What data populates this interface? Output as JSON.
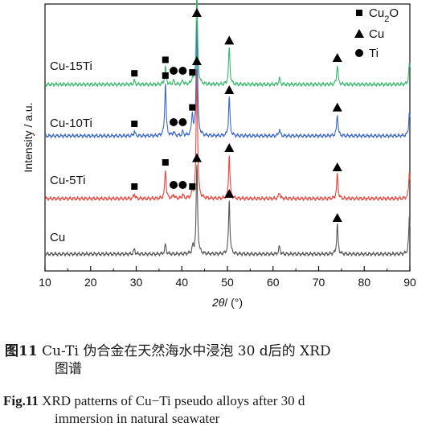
{
  "chart_data": {
    "type": "line",
    "xlabel_italic": "2θ",
    "xlabel_unit": "/ (°)",
    "ylabel": "Intensity / a.u.",
    "xlim": [
      10,
      90
    ],
    "xticks": [
      10,
      20,
      30,
      40,
      50,
      60,
      70,
      80,
      90
    ],
    "yticks_shown": false,
    "grid": false,
    "legend_position": "top-right",
    "legend": [
      {
        "marker": "square",
        "label": "Cu",
        "subscript": "2",
        "suffix": "O"
      },
      {
        "marker": "triangle",
        "label": "Cu"
      },
      {
        "marker": "circle",
        "label": "Ti"
      }
    ],
    "series": [
      {
        "name": "Cu",
        "color": "#555555",
        "peaks": [
          {
            "x": 29.6,
            "h": 0.05
          },
          {
            "x": 36.4,
            "h": 0.1
          },
          {
            "x": 42.4,
            "h": 0.07
          },
          {
            "x": 43.3,
            "h": 0.92
          },
          {
            "x": 50.4,
            "h": 0.55
          },
          {
            "x": 61.4,
            "h": 0.08
          },
          {
            "x": 74.1,
            "h": 0.3
          },
          {
            "x": 89.9,
            "h": 0.38
          }
        ],
        "markers": [
          {
            "x": 43.3,
            "type": "triangle"
          },
          {
            "x": 50.4,
            "type": "triangle"
          },
          {
            "x": 74.1,
            "type": "triangle"
          }
        ]
      },
      {
        "name": "Cu-5Ti",
        "color": "#e8453c",
        "peaks": [
          {
            "x": 29.6,
            "h": 0.05
          },
          {
            "x": 36.4,
            "h": 0.3
          },
          {
            "x": 38.2,
            "h": 0.04
          },
          {
            "x": 40.2,
            "h": 0.04
          },
          {
            "x": 42.3,
            "h": 0.05
          },
          {
            "x": 43.3,
            "h": 1.35
          },
          {
            "x": 50.4,
            "h": 0.45
          },
          {
            "x": 61.4,
            "h": 0.07
          },
          {
            "x": 74.1,
            "h": 0.25
          },
          {
            "x": 89.9,
            "h": 0.28
          }
        ],
        "markers": [
          {
            "x": 29.6,
            "type": "square"
          },
          {
            "x": 36.4,
            "type": "square"
          },
          {
            "x": 38.2,
            "type": "circle"
          },
          {
            "x": 40.2,
            "type": "circle"
          },
          {
            "x": 42.3,
            "type": "square"
          },
          {
            "x": 43.3,
            "type": "triangle"
          },
          {
            "x": 50.4,
            "type": "triangle"
          },
          {
            "x": 74.1,
            "type": "triangle"
          }
        ]
      },
      {
        "name": "Cu-10Ti",
        "color": "#3b67c4",
        "peaks": [
          {
            "x": 29.6,
            "h": 0.05
          },
          {
            "x": 36.4,
            "h": 0.55
          },
          {
            "x": 38.2,
            "h": 0.04
          },
          {
            "x": 40.2,
            "h": 0.04
          },
          {
            "x": 42.3,
            "h": 0.22
          },
          {
            "x": 43.3,
            "h": 1.2
          },
          {
            "x": 50.4,
            "h": 0.4
          },
          {
            "x": 61.4,
            "h": 0.07
          },
          {
            "x": 74.1,
            "h": 0.22
          },
          {
            "x": 89.9,
            "h": 0.25
          }
        ],
        "markers": [
          {
            "x": 29.6,
            "type": "square"
          },
          {
            "x": 36.4,
            "type": "square"
          },
          {
            "x": 38.2,
            "type": "circle"
          },
          {
            "x": 40.2,
            "type": "circle"
          },
          {
            "x": 42.3,
            "type": "square"
          },
          {
            "x": 43.3,
            "type": "triangle"
          },
          {
            "x": 50.4,
            "type": "triangle"
          },
          {
            "x": 74.1,
            "type": "triangle"
          }
        ]
      },
      {
        "name": "Cu-15Ti",
        "color": "#35b86a",
        "peaks": [
          {
            "x": 29.6,
            "h": 0.04
          },
          {
            "x": 36.4,
            "h": 0.18
          },
          {
            "x": 38.2,
            "h": 0.04
          },
          {
            "x": 40.2,
            "h": 0.04
          },
          {
            "x": 42.3,
            "h": 0.05
          },
          {
            "x": 43.3,
            "h": 0.98
          },
          {
            "x": 50.4,
            "h": 0.38
          },
          {
            "x": 61.4,
            "h": 0.06
          },
          {
            "x": 74.1,
            "h": 0.2
          },
          {
            "x": 89.9,
            "h": 0.22
          }
        ],
        "markers": [
          {
            "x": 29.6,
            "type": "square"
          },
          {
            "x": 36.4,
            "type": "square"
          },
          {
            "x": 38.2,
            "type": "circle"
          },
          {
            "x": 40.2,
            "type": "circle"
          },
          {
            "x": 42.3,
            "type": "square"
          },
          {
            "x": 43.3,
            "type": "triangle"
          },
          {
            "x": 50.4,
            "type": "triangle"
          },
          {
            "x": 74.1,
            "type": "triangle"
          }
        ]
      }
    ]
  },
  "caption": {
    "cn_lead": "图11",
    "cn_text": " Cu-Ti 伪合金在天然海水中浸泡 30 d后的 XRD",
    "cn_text2": "图谱",
    "en_lead": "Fig.11",
    "en_text": " XRD patterns of Cu−Ti pseudo alloys after 30 d",
    "en_text2": "immersion in natural seawater"
  }
}
